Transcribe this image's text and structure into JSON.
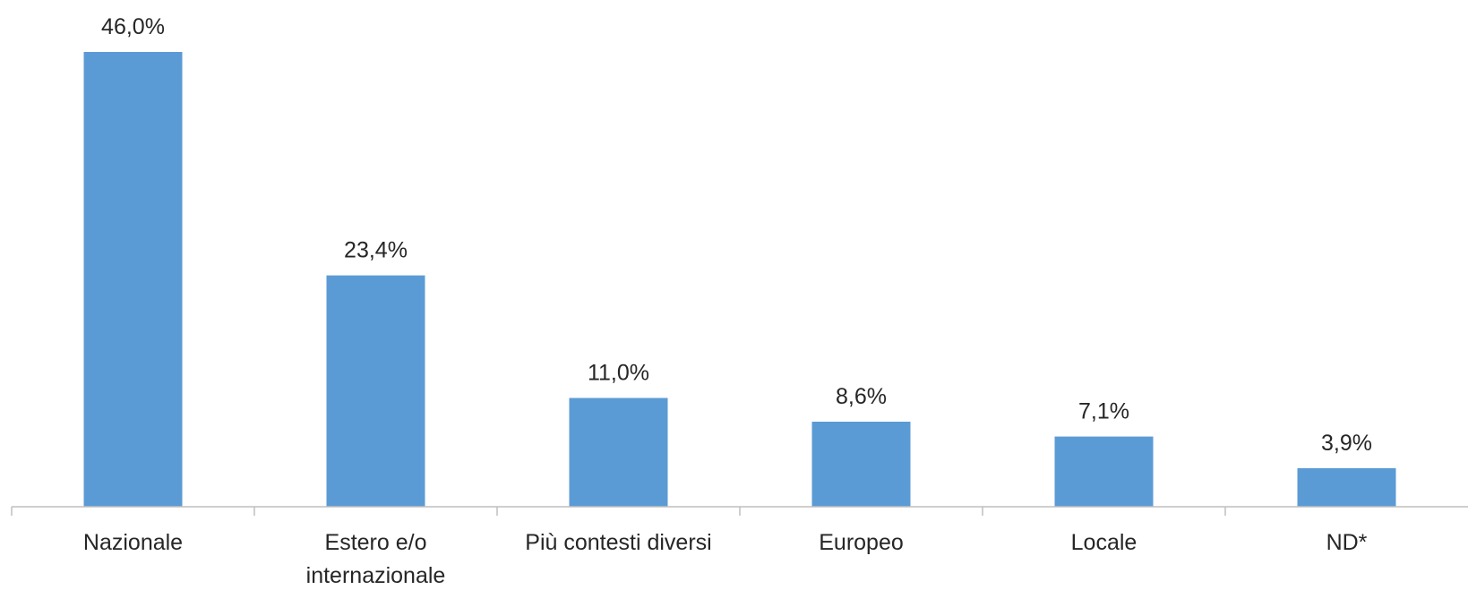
{
  "chart_data": {
    "type": "bar",
    "categories": [
      "Nazionale",
      "Estero e/o internazionale",
      "Più contesti diversi",
      "Europeo",
      "Locale",
      "ND*"
    ],
    "category_lines": [
      [
        "Nazionale"
      ],
      [
        "Estero e/o",
        "internazionale"
      ],
      [
        "Più contesti diversi"
      ],
      [
        "Europeo"
      ],
      [
        "Locale"
      ],
      [
        "ND*"
      ]
    ],
    "values": [
      46.0,
      23.4,
      11.0,
      8.6,
      7.1,
      3.9
    ],
    "data_labels": [
      "46,0%",
      "23,4%",
      "11,0%",
      "8,6%",
      "7,1%",
      "3,9%"
    ],
    "title": "",
    "xlabel": "",
    "ylabel": "",
    "ylim": [
      0,
      46.0
    ],
    "grid": false,
    "legend": "none",
    "bar_color": "#5b9bd5"
  }
}
